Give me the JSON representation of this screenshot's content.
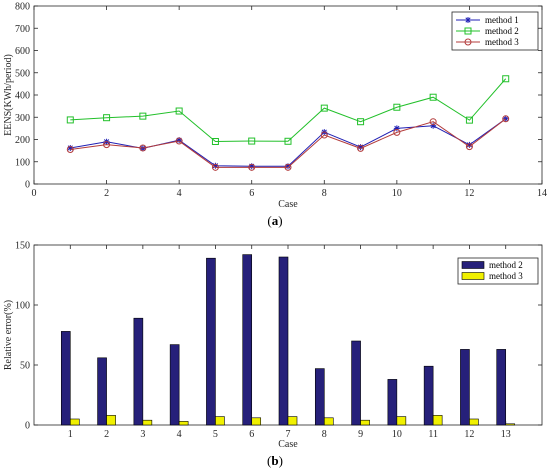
{
  "chart_data": [
    {
      "type": "line",
      "panel_label": "a",
      "xlabel": "Case",
      "ylabel": "EENS(KWh/period)",
      "xlim": [
        0,
        14
      ],
      "ylim": [
        0,
        800
      ],
      "xticks": [
        0,
        2,
        4,
        6,
        8,
        10,
        12,
        14
      ],
      "yticks": [
        0,
        100,
        200,
        300,
        400,
        500,
        600,
        700,
        800
      ],
      "legend_position": "top-right",
      "grid": false,
      "x": [
        1,
        2,
        3,
        4,
        5,
        6,
        7,
        8,
        9,
        10,
        11,
        12,
        13
      ],
      "series": [
        {
          "name": "method 1",
          "color": "#1f1fb4",
          "marker": "asterisk",
          "values": [
            162,
            190,
            160,
            197,
            82,
            80,
            80,
            233,
            166,
            250,
            262,
            176,
            293
          ]
        },
        {
          "name": "method 2",
          "color": "#22c02a",
          "marker": "square",
          "values": [
            288,
            298,
            305,
            328,
            191,
            193,
            192,
            341,
            280,
            345,
            390,
            287,
            473
          ]
        },
        {
          "name": "method 3",
          "color": "#b33b3b",
          "marker": "circle",
          "values": [
            155,
            177,
            162,
            193,
            75,
            75,
            75,
            220,
            160,
            232,
            280,
            168,
            293
          ]
        }
      ]
    },
    {
      "type": "bar",
      "panel_label": "b",
      "xlabel": "Case",
      "ylabel": "Relative error(%)",
      "ylim": [
        0,
        150
      ],
      "yticks": [
        0,
        50,
        100,
        150
      ],
      "legend_position": "top-right",
      "grid": false,
      "categories": [
        "1",
        "2",
        "3",
        "4",
        "5",
        "6",
        "7",
        "8",
        "9",
        "10",
        "11",
        "12",
        "13"
      ],
      "series": [
        {
          "name": "method 2",
          "color": "#26207a",
          "values": [
            78,
            56,
            89,
            67,
            139,
            142,
            140,
            47,
            70,
            38,
            49,
            63,
            63
          ]
        },
        {
          "name": "method 3",
          "color": "#f0f000",
          "values": [
            5,
            8,
            4,
            3,
            7,
            6,
            7,
            6,
            4,
            7,
            8,
            5,
            1
          ]
        }
      ]
    }
  ]
}
